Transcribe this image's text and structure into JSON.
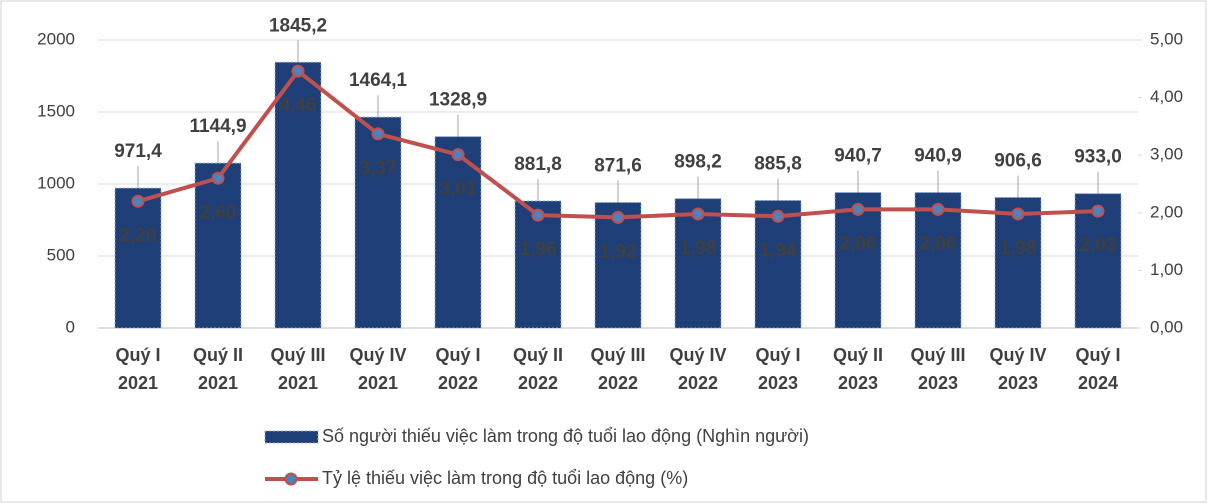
{
  "chart_data": {
    "type": "combo",
    "categories": [
      [
        "Quý I",
        "2021"
      ],
      [
        "Quý II",
        "2021"
      ],
      [
        "Quý III",
        "2021"
      ],
      [
        "Quý IV",
        "2021"
      ],
      [
        "Quý I",
        "2022"
      ],
      [
        "Quý II",
        "2022"
      ],
      [
        "Quý III",
        "2022"
      ],
      [
        "Quý IV",
        "2022"
      ],
      [
        "Quý I",
        "2023"
      ],
      [
        "Quý II",
        "2023"
      ],
      [
        "Quý III",
        "2023"
      ],
      [
        "Quý IV",
        "2023"
      ],
      [
        "Quý I",
        "2024"
      ]
    ],
    "series": [
      {
        "name": "Số người thiếu việc làm trong độ tuổi lao động (Nghìn người)",
        "type": "bar",
        "color": "#1f3f78",
        "values": [
          971.4,
          1144.9,
          1845.2,
          1464.1,
          1328.9,
          881.8,
          871.6,
          898.2,
          885.8,
          940.7,
          940.9,
          906.6,
          933.0
        ],
        "value_labels": [
          "971,4",
          "1144,9",
          "1845,2",
          "1464,1",
          "1328,9",
          "881,8",
          "871,6",
          "898,2",
          "885,8",
          "940,7",
          "940,9",
          "906,6",
          "933,0"
        ]
      },
      {
        "name": "Tỷ lệ thiếu việc làm trong độ tuổi lao động (%)",
        "type": "line",
        "axis": "y2",
        "color": "#c0504d",
        "values": [
          2.2,
          2.6,
          4.46,
          3.37,
          3.01,
          1.96,
          1.92,
          1.98,
          1.94,
          2.06,
          2.06,
          1.98,
          2.03
        ],
        "value_labels": [
          "2,20",
          "2,60",
          "4,46",
          "3,37",
          "3,01",
          "1,96",
          "1,92",
          "1,98",
          "1,94",
          "2,06",
          "2,06",
          "1,98",
          "2,03"
        ]
      }
    ],
    "ylim": [
      0,
      2000
    ],
    "yticks": [
      0,
      500,
      1000,
      1500,
      2000
    ],
    "y2lim": [
      0,
      5
    ],
    "y2ticks": [
      {
        "value": 0,
        "label": "0,00"
      },
      {
        "value": 1,
        "label": "1,00"
      },
      {
        "value": 2,
        "label": "2,00"
      },
      {
        "value": 3,
        "label": "3,00"
      },
      {
        "value": 4,
        "label": "4,00"
      },
      {
        "value": 5,
        "label": "5,00"
      }
    ],
    "grid": true,
    "legend": "bottom"
  }
}
